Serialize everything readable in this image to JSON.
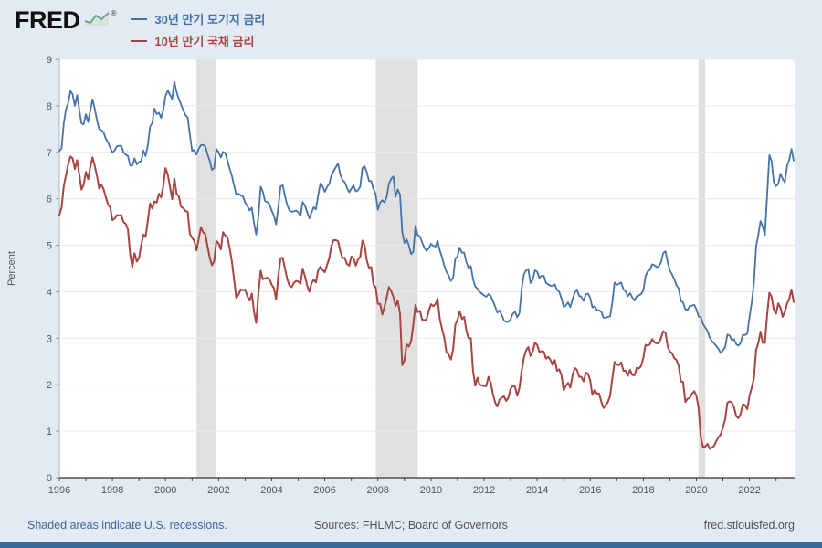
{
  "header": {
    "logo_text": "FRED",
    "registered": "®"
  },
  "footer": {
    "recession_note": "Shaded areas indicate U.S. recessions.",
    "sources": "Sources: FHLMC; Board of Governors",
    "site": "fred.stlouisfed.org"
  },
  "colors": {
    "page_background": "#e2ebf3",
    "plot_background": "#ffffff",
    "accent_bar": "#3a6a99",
    "recession_band": "#e0e0e0",
    "series_blue": "#4572a7",
    "series_red": "#a84442",
    "link_blue": "#41669b",
    "logo_mark_teal": "#6ea58f"
  },
  "chart_data": {
    "type": "line",
    "title": "",
    "ylabel": "Percent",
    "ylim": [
      0,
      9
    ],
    "yticks": [
      0,
      1,
      2,
      3,
      4,
      5,
      6,
      7,
      8,
      9
    ],
    "xlim": [
      1996,
      2023.7
    ],
    "xticks": [
      1996,
      1998,
      2000,
      2002,
      2004,
      2006,
      2008,
      2010,
      2012,
      2014,
      2016,
      2018,
      2020,
      2022
    ],
    "x_start": 1996.0,
    "x_step_years": 0.0833,
    "x_unit": "year (monthly data points)",
    "grid": "horizontal",
    "legend_position": "top-left",
    "recessions": [
      [
        2001.17,
        2001.92
      ],
      [
        2007.92,
        2009.5
      ],
      [
        2020.08,
        2020.33
      ]
    ],
    "series": [
      {
        "name": "30년 만기 모기지 금리",
        "color": "#4572a7",
        "values": [
          7.03,
          7.08,
          7.62,
          7.93,
          8.07,
          8.32,
          8.25,
          8.0,
          8.23,
          7.92,
          7.62,
          7.6,
          7.82,
          7.65,
          7.9,
          8.14,
          7.94,
          7.69,
          7.5,
          7.48,
          7.43,
          7.29,
          7.21,
          7.1,
          6.99,
          7.04,
          7.13,
          7.14,
          7.14,
          7.0,
          6.95,
          6.92,
          6.72,
          6.71,
          6.87,
          6.74,
          6.79,
          6.81,
          7.04,
          6.92,
          7.15,
          7.55,
          7.63,
          7.94,
          7.82,
          7.85,
          7.74,
          7.91,
          8.21,
          8.33,
          8.24,
          8.15,
          8.52,
          8.29,
          8.15,
          8.03,
          7.91,
          7.8,
          7.75,
          7.38,
          7.03,
          7.05,
          6.95,
          7.08,
          7.15,
          7.16,
          7.13,
          6.95,
          6.82,
          6.62,
          6.66,
          7.07,
          7.0,
          6.89,
          7.01,
          6.99,
          6.81,
          6.65,
          6.49,
          6.29,
          6.09,
          6.11,
          6.07,
          6.05,
          5.92,
          5.84,
          5.75,
          5.81,
          5.48,
          5.23,
          5.63,
          6.26,
          6.15,
          5.95,
          5.93,
          5.88,
          5.74,
          5.64,
          5.45,
          5.83,
          6.27,
          6.29,
          6.06,
          5.87,
          5.75,
          5.72,
          5.73,
          5.75,
          5.71,
          5.63,
          5.93,
          5.86,
          5.72,
          5.58,
          5.7,
          5.82,
          5.77,
          6.07,
          6.33,
          6.27,
          6.15,
          6.25,
          6.32,
          6.51,
          6.6,
          6.68,
          6.76,
          6.52,
          6.4,
          6.36,
          6.24,
          6.14,
          6.22,
          6.29,
          6.16,
          6.18,
          6.26,
          6.66,
          6.7,
          6.57,
          6.38,
          6.38,
          6.21,
          6.1,
          5.76,
          5.92,
          5.97,
          5.92,
          6.04,
          6.32,
          6.43,
          6.48,
          6.04,
          6.2,
          6.09,
          5.29,
          5.05,
          5.13,
          5.0,
          4.81,
          4.86,
          5.42,
          5.22,
          5.19,
          5.06,
          4.95,
          4.88,
          4.93,
          5.03,
          4.99,
          4.97,
          5.1,
          4.89,
          4.74,
          4.56,
          4.43,
          4.35,
          4.23,
          4.3,
          4.71,
          4.76,
          4.95,
          4.84,
          4.84,
          4.64,
          4.51,
          4.55,
          4.27,
          4.11,
          4.07,
          4.0,
          3.96,
          3.92,
          3.89,
          3.95,
          3.91,
          3.8,
          3.68,
          3.55,
          3.6,
          3.5,
          3.38,
          3.35,
          3.35,
          3.41,
          3.53,
          3.57,
          3.45,
          3.54,
          4.07,
          4.37,
          4.46,
          4.49,
          4.19,
          4.26,
          4.46,
          4.43,
          4.3,
          4.34,
          4.34,
          4.19,
          4.16,
          4.13,
          4.12,
          4.16,
          4.04,
          4.0,
          3.86,
          3.67,
          3.71,
          3.77,
          3.67,
          3.84,
          3.98,
          4.05,
          3.91,
          3.89,
          3.8,
          3.94,
          3.96,
          3.87,
          3.66,
          3.69,
          3.61,
          3.6,
          3.57,
          3.44,
          3.44,
          3.46,
          3.47,
          3.77,
          4.2,
          4.15,
          4.17,
          4.2,
          4.05,
          4.01,
          3.9,
          3.97,
          3.88,
          3.81,
          3.9,
          3.92,
          3.95,
          4.03,
          4.33,
          4.44,
          4.47,
          4.59,
          4.57,
          4.53,
          4.55,
          4.63,
          4.83,
          4.87,
          4.64,
          4.46,
          4.37,
          4.27,
          4.14,
          4.07,
          3.8,
          3.77,
          3.62,
          3.61,
          3.69,
          3.7,
          3.72,
          3.62,
          3.47,
          3.45,
          3.31,
          3.23,
          3.16,
          3.02,
          2.94,
          2.89,
          2.83,
          2.77,
          2.68,
          2.74,
          2.81,
          3.08,
          3.06,
          2.96,
          2.98,
          2.87,
          2.84,
          2.9,
          3.07,
          3.07,
          3.1,
          3.45,
          3.76,
          4.17,
          4.98,
          5.23,
          5.52,
          5.41,
          5.22,
          6.11,
          6.94,
          6.81,
          6.36,
          6.27,
          6.32,
          6.54,
          6.43,
          6.35,
          6.71,
          6.84,
          7.07,
          6.82
        ]
      },
      {
        "name": "10년 만기 국채 금리",
        "color": "#a84442",
        "values": [
          5.65,
          5.81,
          6.27,
          6.51,
          6.74,
          6.91,
          6.87,
          6.64,
          6.83,
          6.53,
          6.2,
          6.3,
          6.58,
          6.42,
          6.69,
          6.89,
          6.71,
          6.49,
          6.22,
          6.3,
          6.21,
          6.03,
          5.88,
          5.81,
          5.54,
          5.57,
          5.65,
          5.64,
          5.65,
          5.5,
          5.46,
          5.34,
          4.81,
          4.53,
          4.83,
          4.65,
          4.72,
          5.0,
          5.23,
          5.18,
          5.54,
          5.9,
          5.79,
          5.94,
          5.92,
          6.11,
          6.03,
          6.28,
          6.66,
          6.52,
          6.26,
          5.99,
          6.44,
          6.1,
          6.05,
          5.83,
          5.8,
          5.74,
          5.72,
          5.24,
          5.16,
          5.1,
          4.89,
          5.14,
          5.39,
          5.28,
          5.24,
          4.97,
          4.73,
          4.57,
          4.65,
          5.09,
          5.04,
          4.91,
          5.28,
          5.21,
          5.16,
          4.93,
          4.65,
          4.26,
          3.87,
          3.94,
          4.05,
          4.03,
          4.05,
          3.9,
          3.81,
          3.96,
          3.57,
          3.33,
          3.98,
          4.45,
          4.27,
          4.29,
          4.3,
          4.27,
          4.15,
          4.08,
          3.83,
          4.35,
          4.72,
          4.73,
          4.5,
          4.28,
          4.13,
          4.1,
          4.19,
          4.23,
          4.22,
          4.17,
          4.5,
          4.34,
          4.14,
          4.0,
          4.18,
          4.26,
          4.2,
          4.46,
          4.54,
          4.47,
          4.42,
          4.57,
          4.72,
          4.99,
          5.11,
          5.11,
          5.09,
          4.88,
          4.72,
          4.73,
          4.6,
          4.56,
          4.76,
          4.72,
          4.56,
          4.69,
          4.75,
          5.1,
          5.0,
          4.67,
          4.52,
          4.53,
          4.15,
          4.1,
          3.74,
          3.74,
          3.51,
          3.68,
          3.88,
          4.1,
          4.01,
          3.89,
          3.69,
          3.81,
          3.53,
          2.42,
          2.52,
          2.87,
          2.82,
          2.93,
          3.29,
          3.72,
          3.56,
          3.59,
          3.4,
          3.39,
          3.4,
          3.59,
          3.73,
          3.69,
          3.73,
          3.85,
          3.42,
          3.2,
          3.01,
          2.7,
          2.65,
          2.54,
          2.76,
          3.29,
          3.39,
          3.58,
          3.41,
          3.46,
          3.17,
          3.0,
          3.0,
          2.3,
          1.98,
          2.15,
          2.01,
          1.98,
          1.97,
          1.97,
          2.17,
          2.05,
          1.8,
          1.62,
          1.53,
          1.68,
          1.72,
          1.75,
          1.65,
          1.72,
          1.91,
          1.98,
          1.96,
          1.76,
          1.93,
          2.3,
          2.58,
          2.74,
          2.81,
          2.62,
          2.72,
          2.9,
          2.86,
          2.71,
          2.72,
          2.71,
          2.56,
          2.6,
          2.54,
          2.42,
          2.53,
          2.3,
          2.33,
          2.21,
          1.88,
          1.98,
          2.04,
          1.94,
          2.2,
          2.36,
          2.32,
          2.17,
          2.17,
          2.07,
          2.26,
          2.24,
          2.09,
          1.78,
          1.89,
          1.81,
          1.81,
          1.64,
          1.5,
          1.56,
          1.63,
          1.76,
          2.14,
          2.49,
          2.43,
          2.42,
          2.48,
          2.3,
          2.3,
          2.19,
          2.32,
          2.21,
          2.2,
          2.36,
          2.35,
          2.4,
          2.58,
          2.86,
          2.84,
          2.87,
          2.98,
          2.91,
          2.89,
          2.89,
          3.0,
          3.15,
          3.12,
          2.83,
          2.71,
          2.68,
          2.57,
          2.53,
          2.4,
          2.07,
          2.06,
          1.63,
          1.7,
          1.71,
          1.81,
          1.86,
          1.76,
          1.5,
          0.87,
          0.66,
          0.67,
          0.73,
          0.62,
          0.65,
          0.68,
          0.79,
          0.87,
          0.93,
          1.08,
          1.26,
          1.61,
          1.64,
          1.62,
          1.52,
          1.32,
          1.28,
          1.37,
          1.58,
          1.56,
          1.47,
          1.76,
          1.93,
          2.13,
          2.75,
          2.9,
          3.14,
          2.9,
          2.9,
          3.52,
          3.98,
          3.89,
          3.62,
          3.53,
          3.75,
          3.66,
          3.46,
          3.57,
          3.75,
          3.85,
          4.05,
          3.78
        ]
      }
    ]
  }
}
